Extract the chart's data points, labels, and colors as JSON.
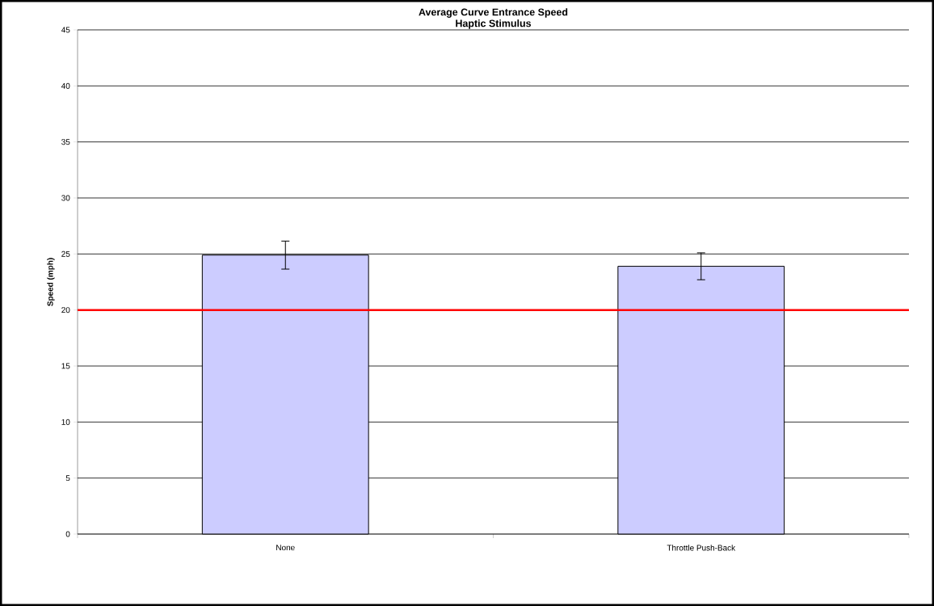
{
  "chart_data": {
    "type": "bar",
    "title": "Average Curve Entrance Speed",
    "subtitle": "Haptic Stimulus",
    "ylabel": "Speed (mph)",
    "categories": [
      "None",
      "Throttle Push-Back"
    ],
    "values": [
      24.9,
      23.9
    ],
    "errors": [
      1.25,
      1.2
    ],
    "color": "#ccccff",
    "ylim": [
      0,
      45
    ],
    "yticks": [
      0,
      5,
      10,
      15,
      20,
      25,
      30,
      35,
      40,
      45
    ],
    "grid": "y",
    "ref_lines": [
      {
        "axis": "y",
        "value": 20,
        "color": "#ff0000"
      }
    ]
  }
}
